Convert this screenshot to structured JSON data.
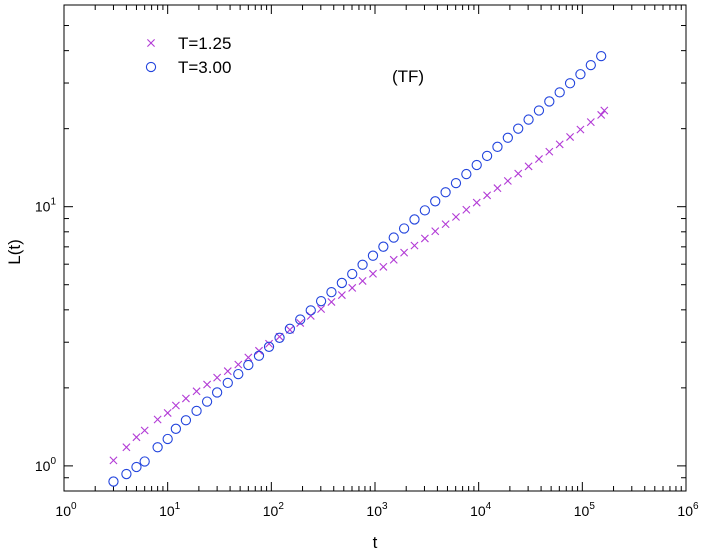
{
  "chart_data": {
    "type": "scatter",
    "xlabel": "t",
    "ylabel": "L(t)",
    "x_scale": "log",
    "y_scale": "log",
    "xlim": [
      1,
      1000000
    ],
    "ylim": [
      0.8,
      60
    ],
    "x_ticks": [
      {
        "base": "10",
        "exp": "0"
      },
      {
        "base": "10",
        "exp": "1"
      },
      {
        "base": "10",
        "exp": "2"
      },
      {
        "base": "10",
        "exp": "3"
      },
      {
        "base": "10",
        "exp": "4"
      },
      {
        "base": "10",
        "exp": "5"
      },
      {
        "base": "10",
        "exp": "6"
      }
    ],
    "y_ticks": [
      {
        "base": "10",
        "exp": "0"
      },
      {
        "base": "10",
        "exp": "1"
      }
    ],
    "annotation": "(TF)",
    "legend_position": "top-left",
    "grid": false,
    "series": [
      {
        "name": "T=1.25",
        "marker": "x",
        "color": "#b23bd6",
        "x": [
          3,
          4,
          5,
          6,
          8,
          10,
          12,
          15,
          19,
          24,
          30,
          38,
          48,
          60,
          76,
          95,
          120,
          151,
          190,
          240,
          302,
          380,
          479,
          603,
          759,
          956,
          1204,
          1516,
          1909,
          2404,
          3027,
          3811,
          4798,
          6040,
          7605,
          9576,
          12057,
          15180,
          19113,
          24064,
          30297,
          38147,
          48030,
          60473,
          76140,
          95865,
          120701,
          151971,
          163000
        ],
        "y": [
          1.05,
          1.18,
          1.29,
          1.37,
          1.51,
          1.6,
          1.71,
          1.82,
          1.94,
          2.06,
          2.19,
          2.32,
          2.46,
          2.62,
          2.78,
          2.96,
          3.15,
          3.35,
          3.56,
          3.79,
          4.03,
          4.29,
          4.56,
          4.86,
          5.17,
          5.51,
          5.86,
          6.24,
          6.65,
          7.08,
          7.54,
          8.04,
          8.56,
          9.13,
          9.73,
          10.37,
          11.06,
          11.79,
          12.57,
          13.42,
          14.31,
          15.27,
          16.3,
          17.4,
          18.58,
          19.84,
          21.2,
          22.6,
          23.5
        ]
      },
      {
        "name": "T=3.00",
        "marker": "circle",
        "color": "#2244dd",
        "x": [
          3,
          4,
          5,
          6,
          8,
          10,
          12,
          15,
          19,
          24,
          30,
          38,
          48,
          60,
          76,
          95,
          120,
          151,
          190,
          240,
          302,
          380,
          479,
          603,
          759,
          956,
          1204,
          1516,
          1909,
          2404,
          3027,
          3811,
          4798,
          6040,
          7605,
          9576,
          12057,
          15180,
          19113,
          24064,
          30297,
          38147,
          48030,
          60473,
          76140,
          95865,
          120701,
          151971
        ],
        "y": [
          0.87,
          0.93,
          0.99,
          1.04,
          1.18,
          1.27,
          1.39,
          1.5,
          1.63,
          1.77,
          1.92,
          2.09,
          2.26,
          2.45,
          2.66,
          2.88,
          3.12,
          3.38,
          3.67,
          3.98,
          4.32,
          4.68,
          5.08,
          5.5,
          5.97,
          6.47,
          7.01,
          7.6,
          8.24,
          8.93,
          9.68,
          10.49,
          11.37,
          12.33,
          13.36,
          14.48,
          15.7,
          17.02,
          18.45,
          20.0,
          21.68,
          23.5,
          25.47,
          27.61,
          29.93,
          32.44,
          35.17,
          38.1
        ]
      }
    ]
  }
}
